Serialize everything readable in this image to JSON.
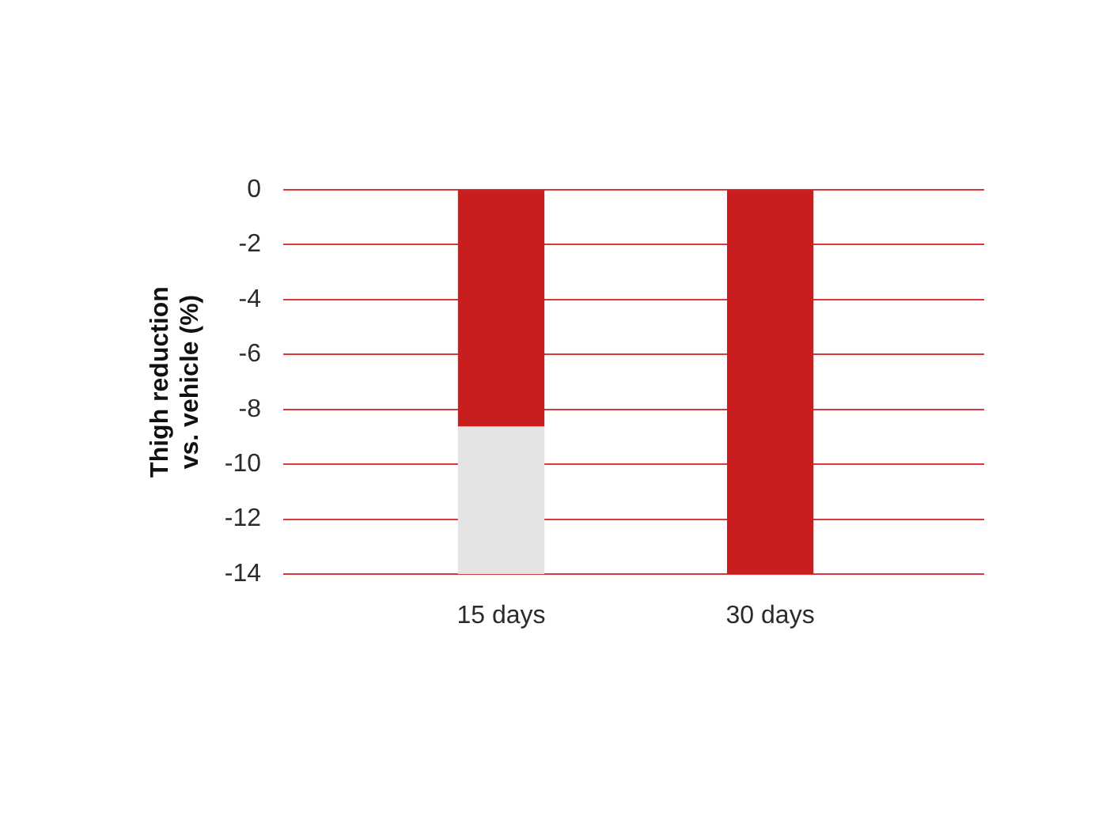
{
  "chart_data": {
    "type": "bar",
    "ylabel": "Thigh reduction vs. vehicle (%)",
    "categories": [
      "15 days",
      "30 days"
    ],
    "series": [
      {
        "color": "#c91d1f",
        "values": [
          -8.6,
          -14
        ]
      },
      {
        "color": "#e4e4e4",
        "values": [
          -5.4,
          null
        ]
      }
    ],
    "stacked": true,
    "ylim": [
      -14,
      0
    ],
    "yticks": [
      -14,
      -12,
      -10,
      -8,
      -6,
      -4,
      -2,
      0
    ],
    "grid": "y",
    "legend": false
  }
}
